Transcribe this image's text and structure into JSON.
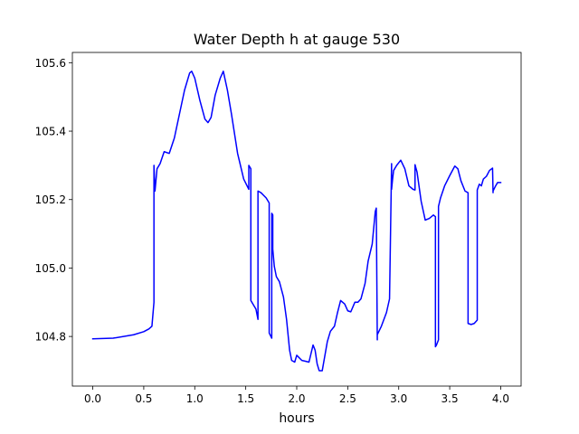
{
  "chart_data": {
    "type": "line",
    "title": "Water Depth h at gauge 530",
    "xlabel": "hours",
    "ylabel": "",
    "xlim": [
      -0.2,
      4.2
    ],
    "ylim": [
      104.655,
      105.63
    ],
    "xticks": [
      0.0,
      0.5,
      1.0,
      1.5,
      2.0,
      2.5,
      3.0,
      3.5,
      4.0
    ],
    "xtick_labels": [
      "0.0",
      "0.5",
      "1.0",
      "1.5",
      "2.0",
      "2.5",
      "3.0",
      "3.5",
      "4.0"
    ],
    "yticks": [
      104.8,
      105.0,
      105.2,
      105.4,
      105.6
    ],
    "ytick_labels": [
      "104.8",
      "105.0",
      "105.2",
      "105.4",
      "105.6"
    ],
    "grid": false,
    "series": [
      {
        "color": "#0000ff",
        "x": [
          0.0,
          0.2,
          0.4,
          0.5,
          0.55,
          0.58,
          0.6,
          0.6,
          0.61,
          0.63,
          0.66,
          0.7,
          0.75,
          0.8,
          0.85,
          0.9,
          0.95,
          0.97,
          1.0,
          1.05,
          1.1,
          1.13,
          1.16,
          1.2,
          1.25,
          1.28,
          1.32,
          1.36,
          1.42,
          1.48,
          1.53,
          1.53,
          1.55,
          1.55,
          1.6,
          1.62,
          1.62,
          1.65,
          1.7,
          1.73,
          1.73,
          1.755,
          1.755,
          1.765,
          1.765,
          1.78,
          1.8,
          1.83,
          1.87,
          1.9,
          1.93,
          1.95,
          1.98,
          2.0,
          2.05,
          2.08,
          2.12,
          2.16,
          2.18,
          2.2,
          2.22,
          2.25,
          2.3,
          2.33,
          2.37,
          2.4,
          2.43,
          2.47,
          2.5,
          2.53,
          2.57,
          2.6,
          2.63,
          2.67,
          2.7,
          2.74,
          2.77,
          2.78,
          2.79,
          2.79,
          2.83,
          2.88,
          2.91,
          2.93,
          2.93,
          2.94,
          2.95,
          2.98,
          3.02,
          3.06,
          3.1,
          3.14,
          3.16,
          3.16,
          3.18,
          3.22,
          3.26,
          3.3,
          3.34,
          3.36,
          3.36,
          3.37,
          3.39,
          3.39,
          3.41,
          3.45,
          3.5,
          3.55,
          3.58,
          3.61,
          3.65,
          3.68,
          3.68,
          3.71,
          3.74,
          3.77,
          3.77,
          3.79,
          3.81,
          3.83,
          3.86,
          3.89,
          3.92,
          3.925,
          3.925,
          3.95,
          3.97,
          4.0
        ],
        "values": [
          104.793,
          104.795,
          104.805,
          104.814,
          104.822,
          104.83,
          104.9,
          105.3,
          105.225,
          105.29,
          105.305,
          105.34,
          105.335,
          105.38,
          105.45,
          105.52,
          105.57,
          105.575,
          105.555,
          105.49,
          105.435,
          105.425,
          105.44,
          105.505,
          105.555,
          105.575,
          105.52,
          105.45,
          105.335,
          105.26,
          105.23,
          105.3,
          105.29,
          104.905,
          104.88,
          104.85,
          105.225,
          105.22,
          105.205,
          105.19,
          104.81,
          104.795,
          105.16,
          105.155,
          105.055,
          105.005,
          104.975,
          104.96,
          104.915,
          104.85,
          104.76,
          104.73,
          104.725,
          104.745,
          104.73,
          104.728,
          104.725,
          104.775,
          104.76,
          104.72,
          104.7,
          104.7,
          104.785,
          104.815,
          104.83,
          104.87,
          104.905,
          104.895,
          104.875,
          104.872,
          104.9,
          104.9,
          104.91,
          104.955,
          105.02,
          105.07,
          105.165,
          105.175,
          104.79,
          104.805,
          104.83,
          104.87,
          104.91,
          105.305,
          105.23,
          105.26,
          105.285,
          105.3,
          105.315,
          105.29,
          105.24,
          105.23,
          105.228,
          105.302,
          105.28,
          105.195,
          105.14,
          105.145,
          105.155,
          105.15,
          104.77,
          104.775,
          104.79,
          105.18,
          105.205,
          105.24,
          105.27,
          105.298,
          105.29,
          105.255,
          105.225,
          105.22,
          104.838,
          104.835,
          104.838,
          104.848,
          105.228,
          105.245,
          105.24,
          105.26,
          105.268,
          105.285,
          105.292,
          105.22,
          105.225,
          105.24,
          105.25,
          105.25
        ]
      }
    ]
  }
}
